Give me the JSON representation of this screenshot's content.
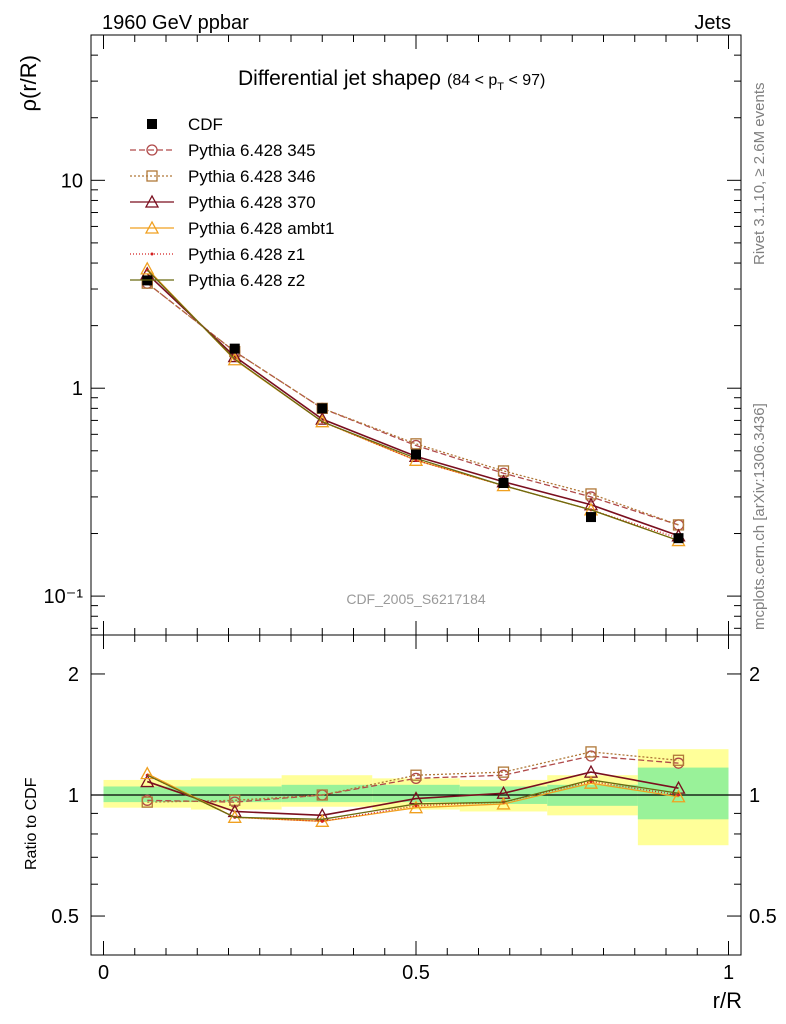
{
  "header": {
    "left": "1960 GeV ppbar",
    "right": "Jets"
  },
  "side": {
    "top": "Rivet 3.1.10, ≥ 2.6M events",
    "bottom": "mcplots.cern.ch [arXiv:1306.3436]"
  },
  "chart_data": [
    {
      "type": "line",
      "title": "Differential jet shapeρ",
      "title_range": "(84 < p",
      "title_range_sub": "T",
      "title_range_end": " < 97)",
      "ylabel": "ρ(r/R)",
      "ylog": true,
      "ylim": [
        0.065,
        50
      ],
      "xlim": [
        -0.02,
        1.02
      ],
      "yticks": [
        {
          "label": "10⁻¹",
          "v": 0.1
        },
        {
          "label": "1",
          "v": 1
        },
        {
          "label": "10",
          "v": 10
        }
      ],
      "watermark": "CDF_2005_S6217184",
      "x": [
        0.07,
        0.21,
        0.35,
        0.5,
        0.64,
        0.78,
        0.92
      ],
      "data": {
        "name": "CDF",
        "values": [
          3.3,
          1.55,
          0.8,
          0.48,
          0.35,
          0.24,
          0.19
        ]
      },
      "series": [
        {
          "name": "Pythia 6.428 345",
          "color": "#b04a4a",
          "dash": "6,3",
          "marker": "circle",
          "values": [
            3.2,
            1.5,
            0.8,
            0.53,
            0.39,
            0.3,
            0.22
          ]
        },
        {
          "name": "Pythia 6.428 346",
          "color": "#b07838",
          "dash": "2,2",
          "marker": "square",
          "values": [
            3.2,
            1.5,
            0.8,
            0.54,
            0.4,
            0.31,
            0.22
          ]
        },
        {
          "name": "Pythia 6.428 370",
          "color": "#7a0f1f",
          "dash": "",
          "marker": "triangle",
          "values": [
            3.55,
            1.42,
            0.71,
            0.47,
            0.355,
            0.275,
            0.195
          ]
        },
        {
          "name": "Pythia 6.428 ambt1",
          "color": "#f0a020",
          "dash": "",
          "marker": "triangle",
          "values": [
            3.75,
            1.37,
            0.69,
            0.45,
            0.34,
            0.26,
            0.185
          ]
        },
        {
          "name": "Pythia 6.428 z1",
          "color": "#d42020",
          "dash": "1,2",
          "marker": "dot",
          "values": [
            3.7,
            1.38,
            0.69,
            0.45,
            0.34,
            0.26,
            0.19
          ]
        },
        {
          "name": "Pythia 6.428 z2",
          "color": "#6b6b10",
          "dash": "",
          "marker": "none",
          "values": [
            3.7,
            1.38,
            0.69,
            0.46,
            0.34,
            0.26,
            0.185
          ]
        }
      ]
    },
    {
      "type": "line",
      "ylabel": "Ratio to CDF",
      "xlabel": "r/R",
      "ylog": true,
      "ylim": [
        0.4,
        2.5
      ],
      "xlim": [
        -0.02,
        1.02
      ],
      "yticks": [
        {
          "label": "0.5",
          "v": 0.5
        },
        {
          "label": "1",
          "v": 1
        },
        {
          "label": "2",
          "v": 2
        }
      ],
      "xticks": [
        {
          "label": "0",
          "v": 0
        },
        {
          "label": "0.5",
          "v": 0.5
        },
        {
          "label": "1",
          "v": 1
        }
      ],
      "bands": [
        {
          "x0": 0.0,
          "x1": 0.14,
          "y_lo": 0.93,
          "y_hi": 1.09,
          "g_lo": 0.96,
          "g_hi": 1.05
        },
        {
          "x0": 0.14,
          "x1": 0.285,
          "y_lo": 0.92,
          "y_hi": 1.1,
          "g_lo": 0.96,
          "g_hi": 1.05
        },
        {
          "x0": 0.285,
          "x1": 0.43,
          "y_lo": 0.935,
          "y_hi": 1.12,
          "g_lo": 0.96,
          "g_hi": 1.06
        },
        {
          "x0": 0.43,
          "x1": 0.57,
          "y_lo": 0.92,
          "y_hi": 1.1,
          "g_lo": 0.96,
          "g_hi": 1.06
        },
        {
          "x0": 0.57,
          "x1": 0.71,
          "y_lo": 0.91,
          "y_hi": 1.09,
          "g_lo": 0.95,
          "g_hi": 1.05
        },
        {
          "x0": 0.71,
          "x1": 0.855,
          "y_lo": 0.89,
          "y_hi": 1.12,
          "g_lo": 0.94,
          "g_hi": 1.06
        },
        {
          "x0": 0.855,
          "x1": 1.0,
          "y_lo": 0.75,
          "y_hi": 1.3,
          "g_lo": 0.87,
          "g_hi": 1.17
        }
      ],
      "x": [
        0.07,
        0.21,
        0.35,
        0.5,
        0.64,
        0.78,
        0.92
      ],
      "series": [
        {
          "name": "Pythia 6.428 345",
          "values": [
            0.97,
            0.96,
            1.0,
            1.1,
            1.12,
            1.25,
            1.2
          ]
        },
        {
          "name": "Pythia 6.428 346",
          "values": [
            0.96,
            0.97,
            1.0,
            1.12,
            1.14,
            1.28,
            1.22
          ]
        },
        {
          "name": "Pythia 6.428 370",
          "values": [
            1.08,
            0.91,
            0.89,
            0.98,
            1.01,
            1.14,
            1.04
          ]
        },
        {
          "name": "Pythia 6.428 ambt1",
          "values": [
            1.13,
            0.88,
            0.86,
            0.93,
            0.95,
            1.07,
            0.99
          ]
        },
        {
          "name": "Pythia 6.428 z1",
          "values": [
            1.12,
            0.88,
            0.86,
            0.94,
            0.96,
            1.08,
            1.0
          ]
        },
        {
          "name": "Pythia 6.428 z2",
          "values": [
            1.12,
            0.88,
            0.87,
            0.95,
            0.96,
            1.09,
            1.01
          ]
        }
      ]
    }
  ]
}
